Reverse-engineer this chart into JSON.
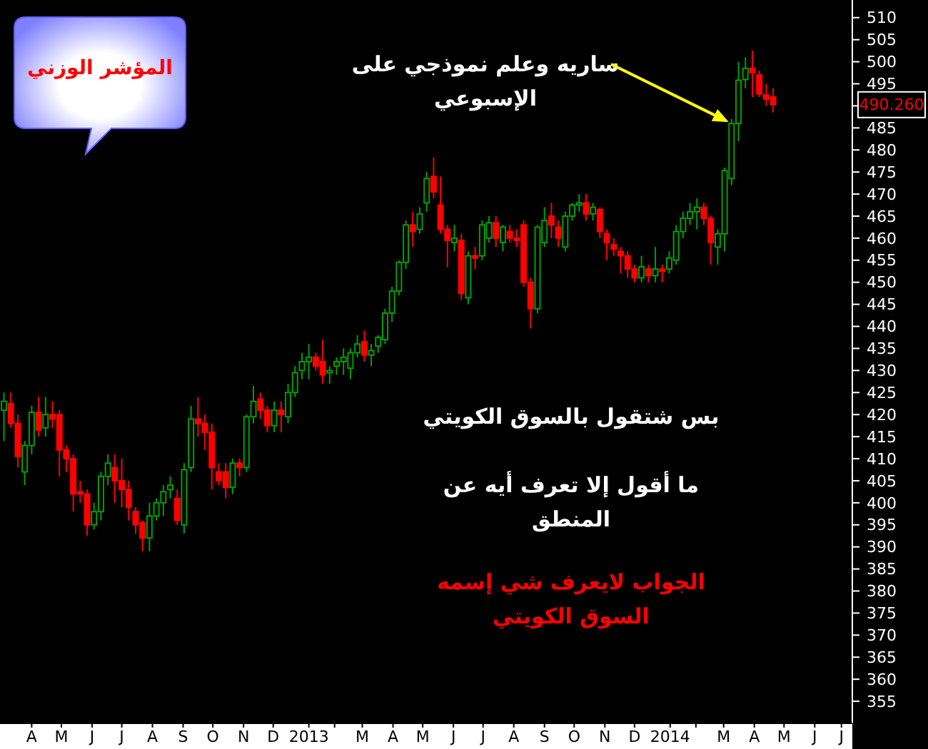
{
  "chart_data": {
    "type": "candlestick",
    "title": "المؤشر الوزني",
    "x": [
      "2012-03-18",
      "2012-03-25",
      "2012-04-01",
      "2012-04-08",
      "2012-04-15",
      "2012-04-22",
      "2012-04-29",
      "2012-05-06",
      "2012-05-13",
      "2012-05-20",
      "2012-05-27",
      "2012-06-03",
      "2012-06-10",
      "2012-06-17",
      "2012-06-24",
      "2012-07-01",
      "2012-07-08",
      "2012-07-15",
      "2012-07-22",
      "2012-07-29",
      "2012-08-05",
      "2012-08-12",
      "2012-08-19",
      "2012-08-26",
      "2012-09-02",
      "2012-09-09",
      "2012-09-16",
      "2012-09-23",
      "2012-09-30",
      "2012-10-07",
      "2012-10-14",
      "2012-10-21",
      "2012-10-28",
      "2012-11-04",
      "2012-11-11",
      "2012-11-18",
      "2012-11-25",
      "2012-12-02",
      "2012-12-09",
      "2012-12-16",
      "2012-12-23",
      "2012-12-30",
      "2013-01-06",
      "2013-01-13",
      "2013-01-20",
      "2013-01-27",
      "2013-02-03",
      "2013-02-10",
      "2013-02-17",
      "2013-02-24",
      "2013-03-03",
      "2013-03-10",
      "2013-03-17",
      "2013-03-24",
      "2013-03-31",
      "2013-04-07",
      "2013-04-14",
      "2013-04-21",
      "2013-04-28",
      "2013-05-05",
      "2013-05-12",
      "2013-05-19",
      "2013-05-26",
      "2013-06-02",
      "2013-06-09",
      "2013-06-16",
      "2013-06-23",
      "2013-06-30",
      "2013-07-07",
      "2013-07-14",
      "2013-07-21",
      "2013-07-28",
      "2013-08-04",
      "2013-08-11",
      "2013-08-18",
      "2013-08-25",
      "2013-09-01",
      "2013-09-08",
      "2013-09-15",
      "2013-09-22",
      "2013-09-29",
      "2013-10-06",
      "2013-10-13",
      "2013-10-20",
      "2013-10-27",
      "2013-11-03",
      "2013-11-10",
      "2013-11-17",
      "2013-11-24",
      "2013-12-01",
      "2013-12-08",
      "2013-12-15",
      "2013-12-22",
      "2013-12-29",
      "2014-01-05",
      "2014-01-12",
      "2014-01-19",
      "2014-01-26",
      "2014-02-02",
      "2014-02-09",
      "2014-02-16",
      "2014-02-23",
      "2014-03-02",
      "2014-03-09",
      "2014-03-16",
      "2014-03-23",
      "2014-03-30",
      "2014-04-06",
      "2014-04-13",
      "2014-04-20",
      "2014-04-27",
      "2014-05-04"
    ],
    "ohlc": [
      [
        421,
        425,
        414,
        423
      ],
      [
        422.5,
        425,
        417,
        418
      ],
      [
        418,
        420,
        408,
        410.5
      ],
      [
        407,
        414,
        404,
        413
      ],
      [
        413,
        422,
        411,
        420.5
      ],
      [
        420.5,
        424,
        415,
        416.5
      ],
      [
        417,
        424,
        415,
        420
      ],
      [
        420,
        423,
        417,
        419
      ],
      [
        420,
        421,
        406,
        412
      ],
      [
        412,
        413,
        407,
        410
      ],
      [
        410,
        411,
        398,
        402
      ],
      [
        402.5,
        405,
        400,
        402
      ],
      [
        402,
        403,
        392.5,
        395
      ],
      [
        395,
        400,
        394,
        398
      ],
      [
        398,
        407,
        396,
        406
      ],
      [
        406,
        411,
        404,
        409
      ],
      [
        408,
        411,
        400,
        405
      ],
      [
        405,
        410,
        399,
        403
      ],
      [
        403,
        405,
        396,
        399
      ],
      [
        398,
        399,
        393,
        395
      ],
      [
        395.5,
        396,
        389,
        392
      ],
      [
        392,
        400,
        389,
        397
      ],
      [
        397,
        401,
        396,
        400
      ],
      [
        400,
        404,
        397,
        402.5
      ],
      [
        403,
        406,
        401,
        404
      ],
      [
        401,
        403,
        395,
        396
      ],
      [
        395,
        409,
        393,
        407.5
      ],
      [
        408,
        422,
        407,
        419
      ],
      [
        419,
        424,
        415,
        418
      ],
      [
        418,
        420,
        412,
        416
      ],
      [
        416,
        418,
        403,
        408
      ],
      [
        407,
        409,
        404,
        405
      ],
      [
        407,
        409,
        401,
        403.5
      ],
      [
        403.5,
        410,
        402,
        409
      ],
      [
        409,
        410,
        406,
        408
      ],
      [
        408,
        420,
        407,
        419.5
      ],
      [
        419.5,
        426.5,
        418,
        423
      ],
      [
        423.5,
        425,
        419,
        421
      ],
      [
        421,
        422,
        416,
        417.5
      ],
      [
        417.5,
        423,
        416,
        421
      ],
      [
        421,
        423,
        416,
        420
      ],
      [
        419.5,
        427,
        418,
        425
      ],
      [
        425,
        431,
        424,
        429.5
      ],
      [
        430,
        434,
        428,
        432
      ],
      [
        432,
        436,
        428,
        433
      ],
      [
        433,
        434,
        430,
        431
      ],
      [
        432,
        437,
        427,
        429
      ],
      [
        429.5,
        431,
        427,
        430
      ],
      [
        431,
        433,
        429,
        432
      ],
      [
        432,
        435,
        429,
        433
      ],
      [
        430.5,
        435,
        428,
        434
      ],
      [
        434,
        438,
        433,
        436
      ],
      [
        436.5,
        439,
        432,
        433.5
      ],
      [
        433.5,
        436,
        431,
        434.5
      ],
      [
        435.5,
        438,
        434,
        437.5
      ],
      [
        437,
        444,
        436,
        443
      ],
      [
        443,
        449,
        441,
        448
      ],
      [
        448,
        455,
        447,
        454.5
      ],
      [
        454.5,
        464,
        453,
        463
      ],
      [
        463,
        466,
        458,
        461.5
      ],
      [
        462,
        467,
        461,
        465.5
      ],
      [
        468,
        475,
        466,
        473.5
      ],
      [
        474,
        478.3,
        469,
        470.5
      ],
      [
        467.5,
        474,
        461,
        462
      ],
      [
        462,
        463,
        453.4,
        459.5
      ],
      [
        459,
        463,
        457,
        460
      ],
      [
        459.5,
        461,
        446,
        447.5
      ],
      [
        446.5,
        457,
        445,
        456
      ],
      [
        456,
        458,
        453,
        455.5
      ],
      [
        456,
        464,
        455,
        463
      ],
      [
        460,
        465,
        459,
        463.5
      ],
      [
        463.5,
        465,
        458,
        460
      ],
      [
        459,
        463,
        457,
        462.5
      ],
      [
        461.5,
        463,
        459,
        460
      ],
      [
        460,
        462,
        458,
        459.5
      ],
      [
        463,
        464,
        449,
        450
      ],
      [
        450,
        451,
        439.5,
        444
      ],
      [
        444,
        463,
        443,
        462.5
      ],
      [
        459,
        467,
        458,
        464
      ],
      [
        465,
        468,
        460,
        463
      ],
      [
        462.5,
        464,
        458,
        460
      ],
      [
        458,
        466,
        457,
        465
      ],
      [
        465,
        468,
        464,
        467.5
      ],
      [
        467.5,
        470,
        466,
        468
      ],
      [
        468,
        470,
        464,
        465.5
      ],
      [
        465.5,
        468,
        464,
        467
      ],
      [
        466.5,
        467,
        460,
        461.5
      ],
      [
        461,
        462,
        455,
        459
      ],
      [
        458.5,
        460,
        456,
        457.5
      ],
      [
        457,
        458,
        452,
        456
      ],
      [
        456,
        457,
        451,
        453
      ],
      [
        453,
        454,
        450,
        451
      ],
      [
        451,
        456,
        450,
        453.5
      ],
      [
        453,
        454,
        450,
        451.5
      ],
      [
        451.5,
        458,
        450,
        453
      ],
      [
        453,
        454,
        450,
        452.5
      ],
      [
        453,
        457,
        452,
        455.5
      ],
      [
        455,
        463,
        454,
        461.5
      ],
      [
        461.5,
        466,
        460,
        464.5
      ],
      [
        464.5,
        468,
        463,
        466
      ],
      [
        466,
        469,
        462,
        467
      ],
      [
        467,
        468,
        463,
        464.5
      ],
      [
        464.5,
        465,
        454,
        459
      ],
      [
        458,
        462,
        454,
        461
      ],
      [
        461,
        476,
        457,
        475.3
      ],
      [
        473.5,
        487,
        472,
        486
      ],
      [
        486,
        500,
        482,
        495.8
      ],
      [
        496,
        501,
        494,
        498.5
      ],
      [
        498.5,
        502.5,
        492,
        497.5
      ],
      [
        497,
        498,
        492,
        492.7
      ],
      [
        492.5,
        495,
        490,
        491.5
      ],
      [
        492,
        494,
        488.5,
        490.26
      ]
    ],
    "colors": [
      "#00a000",
      "#ff0000",
      "#ff0000",
      "#00a000",
      "#00a000",
      "#ff0000",
      "#00a000",
      "#ff0000",
      "#ff0000",
      "#ff0000",
      "#ff0000",
      "#ff0000",
      "#ff0000",
      "#00a000",
      "#00a000",
      "#00a000",
      "#ff0000",
      "#ff0000",
      "#ff0000",
      "#ff0000",
      "#ff0000",
      "#00a000",
      "#00a000",
      "#00a000",
      "#00a000",
      "#ff0000",
      "#00a000",
      "#00a000",
      "#ff0000",
      "#ff0000",
      "#ff0000",
      "#ff0000",
      "#ff0000",
      "#00a000",
      "#ff0000",
      "#00a000",
      "#00a000",
      "#ff0000",
      "#ff0000",
      "#00a000",
      "#ff0000",
      "#00a000",
      "#00a000",
      "#00a000",
      "#00a000",
      "#ff0000",
      "#ff0000",
      "#00a000",
      "#00a000",
      "#00a000",
      "#00a000",
      "#00a000",
      "#ff0000",
      "#00a000",
      "#00a000",
      "#00a000",
      "#00a000",
      "#00a000",
      "#00a000",
      "#ff0000",
      "#00a000",
      "#00a000",
      "#ff0000",
      "#ff0000",
      "#ff0000",
      "#00a000",
      "#ff0000",
      "#00a000",
      "#ff0000",
      "#00a000",
      "#00a000",
      "#ff0000",
      "#00a000",
      "#ff0000",
      "#ff0000",
      "#ff0000",
      "#ff0000",
      "#00a000",
      "#00a000",
      "#ff0000",
      "#ff0000",
      "#00a000",
      "#00a000",
      "#00a000",
      "#ff0000",
      "#00a000",
      "#ff0000",
      "#ff0000",
      "#ff0000",
      "#ff0000",
      "#ff0000",
      "#ff0000",
      "#00a000",
      "#ff0000",
      "#00a000",
      "#ff0000",
      "#00a000",
      "#00a000",
      "#00a000",
      "#00a000",
      "#00a000",
      "#ff0000",
      "#ff0000",
      "#00a000",
      "#00a000",
      "#00a000",
      "#00a000",
      "#00a000",
      "#ff0000",
      "#ff0000",
      "#ff0000",
      "#ff0000"
    ],
    "xlim": [
      "2012-03-14",
      "2014-07-23"
    ],
    "xticks": [
      {
        "value": "2012-04-15",
        "label": "A"
      },
      {
        "value": "2012-05-15",
        "label": "M"
      },
      {
        "value": "2012-06-15",
        "label": "J"
      },
      {
        "value": "2012-07-15",
        "label": "J"
      },
      {
        "value": "2012-08-15",
        "label": "A"
      },
      {
        "value": "2012-09-15",
        "label": "S"
      },
      {
        "value": "2012-10-15",
        "label": "O"
      },
      {
        "value": "2012-11-15",
        "label": "N"
      },
      {
        "value": "2012-12-15",
        "label": "D"
      },
      {
        "value": "2013-01-20",
        "label": "2013"
      },
      {
        "value": "2013-02-15",
        "label": null
      },
      {
        "value": "2013-03-15",
        "label": "M"
      },
      {
        "value": "2013-04-15",
        "label": "A"
      },
      {
        "value": "2013-05-15",
        "label": "M"
      },
      {
        "value": "2013-06-15",
        "label": "J"
      },
      {
        "value": "2013-07-15",
        "label": "J"
      },
      {
        "value": "2013-08-15",
        "label": "A"
      },
      {
        "value": "2013-09-15",
        "label": "S"
      },
      {
        "value": "2013-10-15",
        "label": "O"
      },
      {
        "value": "2013-11-15",
        "label": "N"
      },
      {
        "value": "2013-12-15",
        "label": "D"
      },
      {
        "value": "2014-01-20",
        "label": "2014"
      },
      {
        "value": "2014-02-15",
        "label": null
      },
      {
        "value": "2014-03-15",
        "label": "M"
      },
      {
        "value": "2014-04-15",
        "label": "A"
      },
      {
        "value": "2014-05-15",
        "label": "M"
      },
      {
        "value": "2014-06-15",
        "label": "J"
      },
      {
        "value": "2014-07-12",
        "label": "J"
      }
    ],
    "ylim": [
      350,
      514
    ],
    "yticks": [
      355,
      360,
      365,
      370,
      375,
      380,
      385,
      390,
      395,
      400,
      405,
      410,
      415,
      420,
      425,
      430,
      435,
      440,
      445,
      450,
      455,
      460,
      465,
      470,
      475,
      480,
      485,
      {
        "value": 490,
        "label": null
      },
      495,
      500,
      505,
      510
    ],
    "annotations": [
      {
        "text": "ساريه وعلم نموذجي على\nالإسبوعي",
        "x": "2014-03-23",
        "y": 486
      },
      "بس شتقول بالسوق الكويتي",
      "ما أقول إلا تعرف أيه عن\nالمنطق",
      "الجواب لايعرف شي إسمه\nالسوق الكويتي",
      "490.260"
    ]
  }
}
